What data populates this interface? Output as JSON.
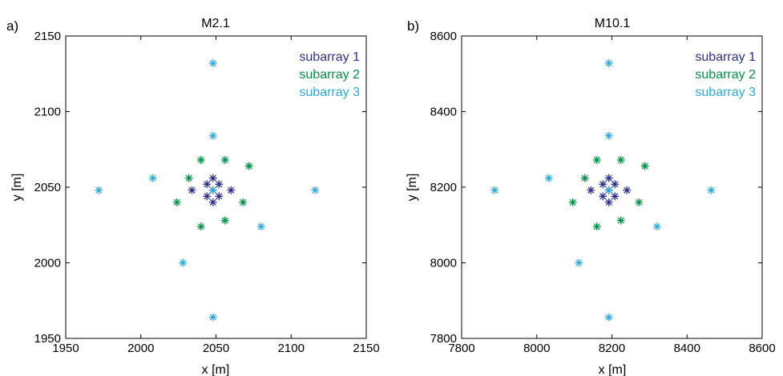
{
  "chart_data": [
    {
      "panel_label": "a)",
      "type": "scatter",
      "title": "M2.1",
      "xlabel": "x [m]",
      "ylabel": "y [m]",
      "xlim": [
        1950,
        2150
      ],
      "ylim": [
        1950,
        2150
      ],
      "xticks": [
        1950,
        2000,
        2050,
        2100,
        2150
      ],
      "yticks": [
        1950,
        2000,
        2050,
        2100,
        2150
      ],
      "grid": false,
      "legend_position": "top-right",
      "marker": "*",
      "series": [
        {
          "name": "subarray 1",
          "color": "#2e3192",
          "points": [
            [
              2048,
              2056
            ],
            [
              2044,
              2052
            ],
            [
              2052,
              2052
            ],
            [
              2034,
              2048
            ],
            [
              2048,
              2048
            ],
            [
              2060,
              2048
            ],
            [
              2044,
              2044
            ],
            [
              2052,
              2044
            ],
            [
              2048,
              2040
            ]
          ]
        },
        {
          "name": "subarray 2",
          "color": "#009245",
          "points": [
            [
              2040,
              2068
            ],
            [
              2056,
              2068
            ],
            [
              2072,
              2064
            ],
            [
              2032,
              2056
            ],
            [
              2024,
              2040
            ],
            [
              2068,
              2040
            ],
            [
              2056,
              2028
            ],
            [
              2040,
              2024
            ]
          ]
        },
        {
          "name": "subarray 3",
          "color": "#29abe2",
          "points": [
            [
              2048,
              2132
            ],
            [
              2048,
              2084
            ],
            [
              2008,
              2056
            ],
            [
              1972,
              2048
            ],
            [
              2116,
              2048
            ],
            [
              2048,
              2048
            ],
            [
              2080,
              2024
            ],
            [
              2028,
              2000
            ],
            [
              2048,
              1964
            ]
          ]
        }
      ]
    },
    {
      "panel_label": "b)",
      "type": "scatter",
      "title": "M10.1",
      "xlabel": "x [m]",
      "ylabel": "y [m]",
      "xlim": [
        7800,
        8600
      ],
      "ylim": [
        7800,
        8600
      ],
      "xticks": [
        7800,
        8000,
        8200,
        8400,
        8600
      ],
      "yticks": [
        7800,
        8000,
        8200,
        8400,
        8600
      ],
      "grid": false,
      "legend_position": "top-right",
      "marker": "*",
      "series": [
        {
          "name": "subarray 1",
          "color": "#2e3192",
          "points": [
            [
              8192,
              8224
            ],
            [
              8176,
              8208
            ],
            [
              8208,
              8208
            ],
            [
              8144,
              8192
            ],
            [
              8192,
              8192
            ],
            [
              8240,
              8192
            ],
            [
              8176,
              8176
            ],
            [
              8208,
              8176
            ],
            [
              8192,
              8160
            ]
          ]
        },
        {
          "name": "subarray 2",
          "color": "#009245",
          "points": [
            [
              8160,
              8272
            ],
            [
              8224,
              8272
            ],
            [
              8288,
              8256
            ],
            [
              8128,
              8224
            ],
            [
              8096,
              8160
            ],
            [
              8272,
              8160
            ],
            [
              8224,
              8112
            ],
            [
              8160,
              8096
            ]
          ]
        },
        {
          "name": "subarray 3",
          "color": "#29abe2",
          "points": [
            [
              8192,
              8528
            ],
            [
              8192,
              8336
            ],
            [
              8032,
              8224
            ],
            [
              7888,
              8192
            ],
            [
              8464,
              8192
            ],
            [
              8192,
              8192
            ],
            [
              8320,
              8096
            ],
            [
              8112,
              8000
            ],
            [
              8192,
              7856
            ]
          ]
        }
      ]
    }
  ]
}
